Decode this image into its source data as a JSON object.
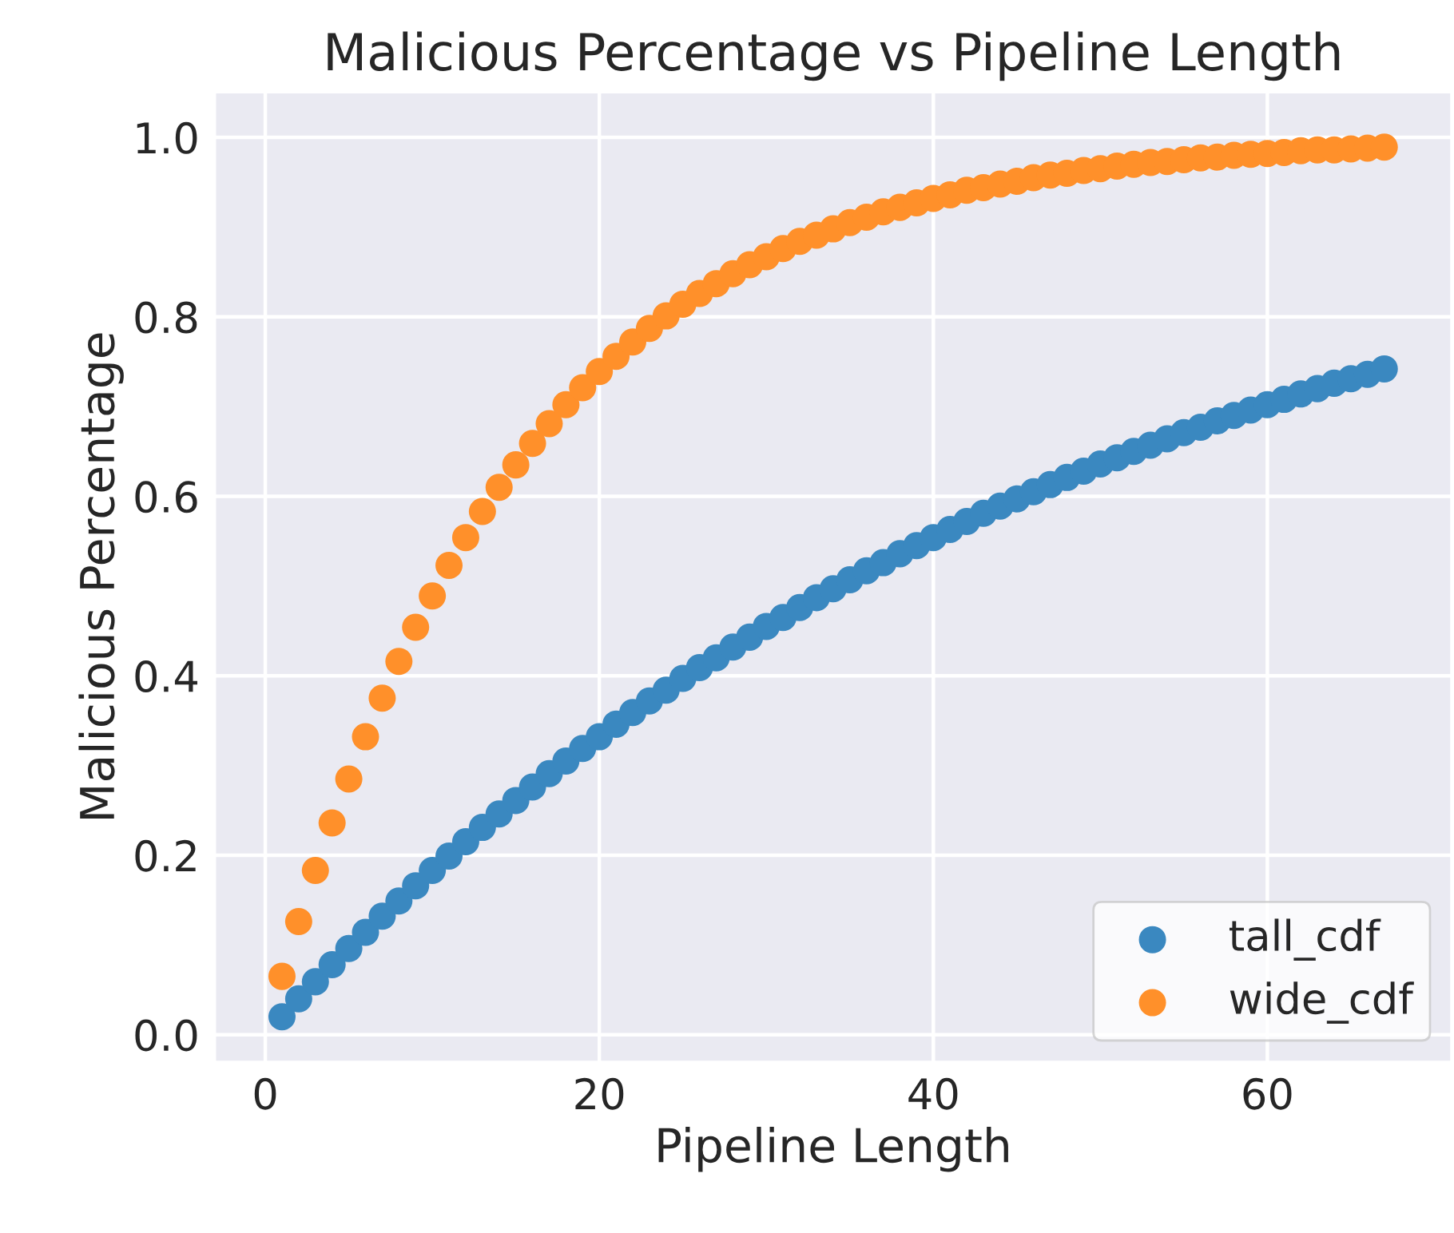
{
  "chart_data": {
    "type": "scatter",
    "title": "Malicious Percentage vs Pipeline Length",
    "xlabel": "Pipeline Length",
    "ylabel": "Malicious Percentage",
    "x": [
      1,
      2,
      3,
      4,
      5,
      6,
      7,
      8,
      9,
      10,
      11,
      12,
      13,
      14,
      15,
      16,
      17,
      18,
      19,
      20,
      21,
      22,
      23,
      24,
      25,
      26,
      27,
      28,
      29,
      30,
      31,
      32,
      33,
      34,
      35,
      36,
      37,
      38,
      39,
      40,
      41,
      42,
      43,
      44,
      45,
      46,
      47,
      48,
      49,
      50,
      51,
      52,
      53,
      54,
      55,
      56,
      57,
      58,
      59,
      60,
      61,
      62,
      63,
      64,
      65,
      66,
      67
    ],
    "series": [
      {
        "name": "tall_cdf",
        "color": "#3a88c0",
        "values": [
          0.02,
          0.04,
          0.059,
          0.078,
          0.096,
          0.114,
          0.132,
          0.149,
          0.166,
          0.183,
          0.199,
          0.215,
          0.231,
          0.246,
          0.261,
          0.276,
          0.291,
          0.305,
          0.319,
          0.332,
          0.346,
          0.359,
          0.372,
          0.384,
          0.397,
          0.409,
          0.42,
          0.432,
          0.443,
          0.455,
          0.465,
          0.476,
          0.487,
          0.497,
          0.507,
          0.517,
          0.526,
          0.536,
          0.545,
          0.554,
          0.563,
          0.572,
          0.581,
          0.589,
          0.597,
          0.605,
          0.613,
          0.621,
          0.628,
          0.636,
          0.643,
          0.65,
          0.657,
          0.664,
          0.671,
          0.677,
          0.684,
          0.69,
          0.696,
          0.702,
          0.708,
          0.714,
          0.72,
          0.726,
          0.731,
          0.736,
          0.742
        ]
      },
      {
        "name": "wide_cdf",
        "color": "#ff902a",
        "values": [
          0.065,
          0.126,
          0.183,
          0.236,
          0.285,
          0.332,
          0.375,
          0.416,
          0.454,
          0.489,
          0.523,
          0.554,
          0.583,
          0.61,
          0.635,
          0.659,
          0.681,
          0.702,
          0.721,
          0.739,
          0.756,
          0.772,
          0.787,
          0.801,
          0.814,
          0.826,
          0.837,
          0.848,
          0.858,
          0.867,
          0.876,
          0.884,
          0.891,
          0.898,
          0.905,
          0.911,
          0.917,
          0.922,
          0.927,
          0.932,
          0.936,
          0.941,
          0.944,
          0.948,
          0.951,
          0.955,
          0.958,
          0.96,
          0.963,
          0.965,
          0.968,
          0.97,
          0.972,
          0.973,
          0.975,
          0.977,
          0.978,
          0.98,
          0.981,
          0.982,
          0.983,
          0.985,
          0.986,
          0.986,
          0.987,
          0.988,
          0.989
        ]
      }
    ],
    "xlim": [
      -3,
      71
    ],
    "xticks": [
      0,
      20,
      40,
      60
    ],
    "ylim": [
      -0.03,
      1.05
    ],
    "yticks": [
      {
        "value": 0,
        "label": "0.0"
      },
      {
        "value": 0.2,
        "label": "0.2"
      },
      {
        "value": 0.4,
        "label": "0.4"
      },
      {
        "value": 0.6,
        "label": "0.6"
      },
      {
        "value": 0.8,
        "label": "0.8"
      },
      {
        "value": 1.0,
        "label": "1.0"
      }
    ],
    "grid": true,
    "legend": "lower right",
    "marker": "circle"
  }
}
